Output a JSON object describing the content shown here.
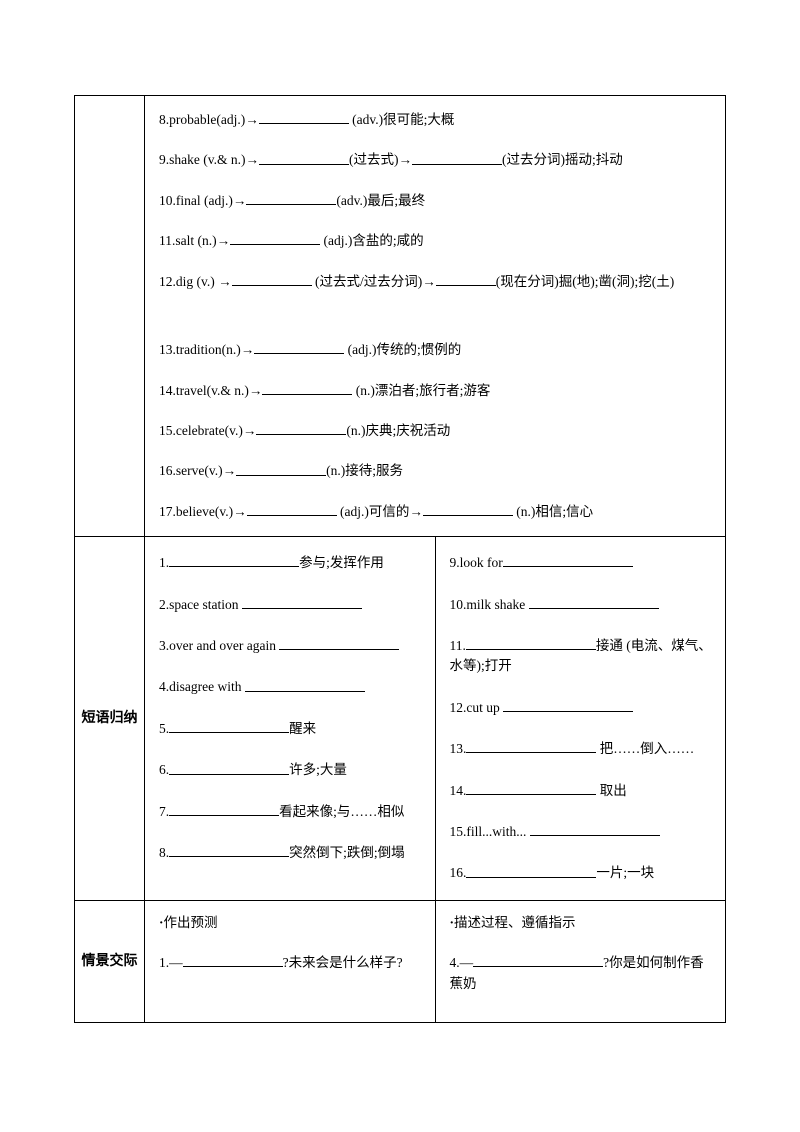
{
  "row1": {
    "items": [
      {
        "n": "8.",
        "w": "probable(adj.)→",
        "suf": " (adv.)很可能;大概",
        "bw": "b90"
      },
      {
        "n": "9.",
        "w": "shake (v.& n.)→",
        "mid": "(过去式)→",
        "suf": "(过去分词)摇动;抖动",
        "bw": "b90",
        "bw2": "b90"
      },
      {
        "n": "10.",
        "w": "final (adj.)→",
        "suf": "(adv.)最后;最终",
        "bw": "b90"
      },
      {
        "n": "11.",
        "w": "salt (n.)→",
        "suf": " (adj.)含盐的;咸的",
        "bw": "b90"
      },
      {
        "n": "12.",
        "w": "dig (v.) →",
        "mid": " (过去式/过去分词)→",
        "suf": "(现在分词)掘(地);凿(洞);挖(土)",
        "bw": "b80",
        "bw2": "b60",
        "gap": true
      },
      {
        "n": "13.",
        "w": "tradition(n.)→",
        "suf": " (adj.)传统的;惯例的",
        "bw": "b90"
      },
      {
        "n": "14.",
        "w": "travel(v.& n.)→",
        "suf": " (n.)漂泊者;旅行者;游客",
        "bw": "b90"
      },
      {
        "n": "15.",
        "w": "celebrate(v.)→",
        "suf": "(n.)庆典;庆祝活动",
        "bw": "b90"
      },
      {
        "n": "16.",
        "w": "serve(v.)→",
        "suf": "(n.)接待;服务",
        "bw": "b90"
      },
      {
        "n": "17.",
        "w": "believe(v.)→",
        "mid": " (adj.)可信的→",
        "suf": " (n.)相信;信心",
        "bw": "b90",
        "bw2": "b90"
      }
    ]
  },
  "row2": {
    "label": "短语归纳",
    "left": [
      {
        "pre": "1.",
        "blank": "b130",
        "post": "参与;发挥作用"
      },
      {
        "pre": "2.space station ",
        "blank": "b120",
        "post": ""
      },
      {
        "pre": "3.over and over again ",
        "blank": "b120",
        "post": ""
      },
      {
        "pre": "4.disagree with ",
        "blank": "b120",
        "post": ""
      },
      {
        "pre": "5.",
        "blank": "b120",
        "post": "醒来"
      },
      {
        "pre": "6.",
        "blank": "b120",
        "post": "许多;大量"
      },
      {
        "pre": "7.",
        "blank": "b110",
        "post": "看起来像;与……相似"
      },
      {
        "pre": "8.",
        "blank": "b120",
        "post": "突然倒下;跌倒;倒塌"
      }
    ],
    "right": [
      {
        "pre": "9.look for",
        "blank": "b130",
        "post": ""
      },
      {
        "pre": "10.milk shake ",
        "blank": "b130",
        "post": ""
      },
      {
        "pre": "11.",
        "blank": "b130",
        "post": "接通 (电流、煤气、水等);打开"
      },
      {
        "pre": "12.cut up ",
        "blank": "b130",
        "post": ""
      },
      {
        "pre": "13.",
        "blank": "b130",
        "post": " 把……倒入……"
      },
      {
        "pre": "14.",
        "blank": "b130",
        "post": " 取出"
      },
      {
        "pre": "15.fill...with... ",
        "blank": "b130",
        "post": ""
      },
      {
        "pre": "16.",
        "blank": "b130",
        "post": "一片;一块"
      }
    ]
  },
  "row3": {
    "label": "情景交际",
    "left": {
      "title": "作出预测",
      "q": {
        "pre": "1.—",
        "blank": "b100",
        "post": "?未来会是什么样子?"
      }
    },
    "right": {
      "title": "描述过程、遵循指示",
      "q": {
        "pre": "4.—",
        "blank": "b130",
        "post": "?你是如何制作香蕉奶"
      }
    }
  }
}
